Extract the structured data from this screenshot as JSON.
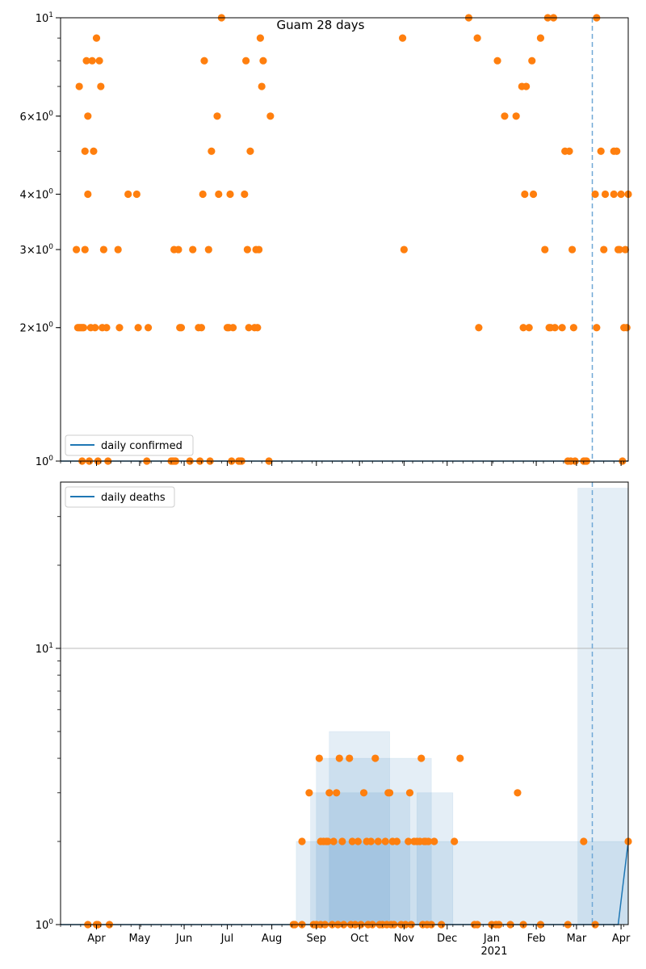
{
  "chart_data": [
    {
      "type": "scatter",
      "title": "Guam 28 days",
      "yscale": "log",
      "ylim": [
        1,
        10
      ],
      "ytick_labels": [
        "10^0",
        "2×10^0",
        "3×10^0",
        "4×10^0",
        "6×10^0",
        "10^1"
      ],
      "x_range": [
        "2020-03-07",
        "2021-04-06"
      ],
      "vline_date": "2021-03-12",
      "legend": {
        "label": "daily confirmed",
        "placement": "lower-left"
      },
      "line_series": {
        "name": "daily confirmed",
        "color": "#1f77b4"
      },
      "points_color": "#ff7f0e",
      "points": [
        [
          "2020-03-18",
          3
        ],
        [
          "2020-03-19",
          2
        ],
        [
          "2020-03-20",
          7
        ],
        [
          "2020-03-20",
          2
        ],
        [
          "2020-03-21",
          2
        ],
        [
          "2020-03-22",
          1
        ],
        [
          "2020-03-22",
          2
        ],
        [
          "2020-03-23",
          2
        ],
        [
          "2020-03-24",
          3
        ],
        [
          "2020-03-24",
          5
        ],
        [
          "2020-03-25",
          8
        ],
        [
          "2020-03-26",
          6
        ],
        [
          "2020-03-26",
          4
        ],
        [
          "2020-03-27",
          1
        ],
        [
          "2020-03-28",
          2
        ],
        [
          "2020-03-29",
          8
        ],
        [
          "2020-03-30",
          5
        ],
        [
          "2020-03-31",
          2
        ],
        [
          "2020-04-01",
          9
        ],
        [
          "2020-04-02",
          1
        ],
        [
          "2020-04-03",
          8
        ],
        [
          "2020-04-04",
          7
        ],
        [
          "2020-04-05",
          2
        ],
        [
          "2020-04-06",
          3
        ],
        [
          "2020-04-08",
          2
        ],
        [
          "2020-04-09",
          1
        ],
        [
          "2020-04-16",
          3
        ],
        [
          "2020-04-17",
          2
        ],
        [
          "2020-04-23",
          4
        ],
        [
          "2020-04-29",
          4
        ],
        [
          "2020-04-30",
          2
        ],
        [
          "2020-05-06",
          1
        ],
        [
          "2020-05-07",
          2
        ],
        [
          "2020-05-23",
          1
        ],
        [
          "2020-05-24",
          1
        ],
        [
          "2020-05-25",
          3
        ],
        [
          "2020-05-25",
          1
        ],
        [
          "2020-05-26",
          1
        ],
        [
          "2020-05-28",
          3
        ],
        [
          "2020-05-29",
          2
        ],
        [
          "2020-05-30",
          2
        ],
        [
          "2020-06-05",
          1
        ],
        [
          "2020-06-07",
          3
        ],
        [
          "2020-06-11",
          2
        ],
        [
          "2020-06-12",
          1
        ],
        [
          "2020-06-13",
          2
        ],
        [
          "2020-06-14",
          4
        ],
        [
          "2020-06-15",
          8
        ],
        [
          "2020-06-18",
          3
        ],
        [
          "2020-06-19",
          1
        ],
        [
          "2020-06-20",
          5
        ],
        [
          "2020-06-24",
          6
        ],
        [
          "2020-06-25",
          4
        ],
        [
          "2020-06-27",
          10
        ],
        [
          "2020-07-01",
          2
        ],
        [
          "2020-07-02",
          2
        ],
        [
          "2020-07-03",
          4
        ],
        [
          "2020-07-04",
          1
        ],
        [
          "2020-07-05",
          2
        ],
        [
          "2020-07-09",
          1
        ],
        [
          "2020-07-10",
          1
        ],
        [
          "2020-07-11",
          1
        ],
        [
          "2020-07-13",
          4
        ],
        [
          "2020-07-14",
          8
        ],
        [
          "2020-07-15",
          3
        ],
        [
          "2020-07-16",
          2
        ],
        [
          "2020-07-17",
          5
        ],
        [
          "2020-07-20",
          2
        ],
        [
          "2020-07-21",
          3
        ],
        [
          "2020-07-22",
          2
        ],
        [
          "2020-07-23",
          3
        ],
        [
          "2020-07-24",
          9
        ],
        [
          "2020-07-25",
          7
        ],
        [
          "2020-07-26",
          8
        ],
        [
          "2020-07-30",
          1
        ],
        [
          "2020-07-31",
          6
        ],
        [
          "2020-10-31",
          9
        ],
        [
          "2020-11-01",
          3
        ],
        [
          "2020-12-16",
          10
        ],
        [
          "2020-12-22",
          9
        ],
        [
          "2020-12-23",
          2
        ],
        [
          "2021-01-05",
          8
        ],
        [
          "2021-01-10",
          6
        ],
        [
          "2021-01-18",
          6
        ],
        [
          "2021-01-22",
          7
        ],
        [
          "2021-01-23",
          2
        ],
        [
          "2021-01-24",
          4
        ],
        [
          "2021-01-25",
          7
        ],
        [
          "2021-01-27",
          2
        ],
        [
          "2021-01-29",
          8
        ],
        [
          "2021-01-30",
          4
        ],
        [
          "2021-02-04",
          9
        ],
        [
          "2021-02-07",
          3
        ],
        [
          "2021-02-09",
          10
        ],
        [
          "2021-02-10",
          2
        ],
        [
          "2021-02-11",
          2
        ],
        [
          "2021-02-13",
          10
        ],
        [
          "2021-02-14",
          2
        ],
        [
          "2021-02-19",
          2
        ],
        [
          "2021-02-21",
          5
        ],
        [
          "2021-02-23",
          1
        ],
        [
          "2021-02-24",
          5
        ],
        [
          "2021-02-25",
          1
        ],
        [
          "2021-02-26",
          3
        ],
        [
          "2021-02-27",
          2
        ],
        [
          "2021-02-28",
          1
        ],
        [
          "2021-03-06",
          1
        ],
        [
          "2021-03-07",
          1
        ],
        [
          "2021-03-08",
          1
        ],
        [
          "2021-03-14",
          4
        ],
        [
          "2021-03-15",
          2
        ],
        [
          "2021-03-15",
          10
        ],
        [
          "2021-03-18",
          5
        ],
        [
          "2021-03-20",
          3
        ],
        [
          "2021-03-21",
          4
        ],
        [
          "2021-03-27",
          4
        ],
        [
          "2021-03-27",
          5
        ],
        [
          "2021-03-29",
          5
        ],
        [
          "2021-03-30",
          3
        ],
        [
          "2021-03-31",
          3
        ],
        [
          "2021-04-01",
          4
        ],
        [
          "2021-04-02",
          1
        ],
        [
          "2021-04-03",
          2
        ],
        [
          "2021-04-04",
          3
        ],
        [
          "2021-04-05",
          2
        ],
        [
          "2021-04-06",
          4
        ]
      ]
    },
    {
      "type": "scatter",
      "title": "",
      "yscale": "log",
      "ylim": [
        1,
        40
      ],
      "ytick_labels": [
        "10^0",
        "10^1"
      ],
      "grid_at": [
        10
      ],
      "x_range": [
        "2020-03-07",
        "2021-04-06"
      ],
      "xtick_labels": [
        "Apr",
        "May",
        "Jun",
        "Jul",
        "Aug",
        "Sep",
        "Oct",
        "Nov",
        "Dec",
        "Jan",
        "Feb",
        "Mar",
        "Apr"
      ],
      "xtick_dates": [
        "2020-04-01",
        "2020-05-01",
        "2020-06-01",
        "2020-07-01",
        "2020-08-01",
        "2020-09-01",
        "2020-10-01",
        "2020-11-01",
        "2020-12-01",
        "2021-01-01",
        "2021-02-01",
        "2021-03-01",
        "2021-04-01"
      ],
      "year_label": "2021",
      "vline_date": "2021-03-12",
      "legend": {
        "label": "daily deaths",
        "placement": "upper-left"
      },
      "line_series": {
        "name": "daily deaths",
        "color": "#1f77b4",
        "points": [
          [
            "2021-03-30",
            1
          ],
          [
            "2021-04-06",
            2
          ]
        ]
      },
      "points_color": "#ff7f0e",
      "bands": [
        {
          "from": "2020-08-18",
          "to": "2021-04-06",
          "low": 1,
          "high": 2
        },
        {
          "from": "2020-09-01",
          "to": "2020-11-20",
          "low": 1,
          "high": 4
        },
        {
          "from": "2020-09-10",
          "to": "2020-10-22",
          "low": 1,
          "high": 5
        },
        {
          "from": "2020-11-10",
          "to": "2020-12-05",
          "low": 1,
          "high": 3
        },
        {
          "from": "2020-08-28",
          "to": "2020-11-05",
          "low": 1,
          "high": 3
        },
        {
          "from": "2021-03-02",
          "to": "2021-04-06",
          "low": 1,
          "high": 38
        }
      ],
      "points": [
        [
          "2020-03-26",
          1
        ],
        [
          "2020-04-01",
          1
        ],
        [
          "2020-04-02",
          1
        ],
        [
          "2020-04-10",
          1
        ],
        [
          "2020-08-16",
          1
        ],
        [
          "2020-08-17",
          1
        ],
        [
          "2020-08-22",
          2
        ],
        [
          "2020-08-22",
          1
        ],
        [
          "2020-08-27",
          3
        ],
        [
          "2020-08-30",
          1
        ],
        [
          "2020-09-01",
          1
        ],
        [
          "2020-09-03",
          4
        ],
        [
          "2020-09-04",
          2
        ],
        [
          "2020-09-04",
          1
        ],
        [
          "2020-09-06",
          2
        ],
        [
          "2020-09-07",
          1
        ],
        [
          "2020-09-08",
          2
        ],
        [
          "2020-09-09",
          2
        ],
        [
          "2020-09-10",
          3
        ],
        [
          "2020-09-12",
          1
        ],
        [
          "2020-09-13",
          2
        ],
        [
          "2020-09-15",
          3
        ],
        [
          "2020-09-16",
          1
        ],
        [
          "2020-09-17",
          4
        ],
        [
          "2020-09-19",
          2
        ],
        [
          "2020-09-20",
          1
        ],
        [
          "2020-09-24",
          4
        ],
        [
          "2020-09-25",
          1
        ],
        [
          "2020-09-26",
          2
        ],
        [
          "2020-09-28",
          1
        ],
        [
          "2020-09-30",
          2
        ],
        [
          "2020-10-02",
          1
        ],
        [
          "2020-10-04",
          3
        ],
        [
          "2020-10-06",
          2
        ],
        [
          "2020-10-07",
          1
        ],
        [
          "2020-10-09",
          2
        ],
        [
          "2020-10-10",
          1
        ],
        [
          "2020-10-12",
          4
        ],
        [
          "2020-10-14",
          2
        ],
        [
          "2020-10-15",
          1
        ],
        [
          "2020-10-17",
          1
        ],
        [
          "2020-10-19",
          2
        ],
        [
          "2020-10-20",
          1
        ],
        [
          "2020-10-21",
          3
        ],
        [
          "2020-10-22",
          3
        ],
        [
          "2020-10-23",
          1
        ],
        [
          "2020-10-24",
          2
        ],
        [
          "2020-10-25",
          1
        ],
        [
          "2020-10-27",
          2
        ],
        [
          "2020-10-30",
          1
        ],
        [
          "2020-11-02",
          1
        ],
        [
          "2020-11-04",
          2
        ],
        [
          "2020-11-05",
          3
        ],
        [
          "2020-11-06",
          1
        ],
        [
          "2020-11-08",
          2
        ],
        [
          "2020-11-10",
          2
        ],
        [
          "2020-11-12",
          2
        ],
        [
          "2020-11-13",
          4
        ],
        [
          "2020-11-14",
          1
        ],
        [
          "2020-11-15",
          2
        ],
        [
          "2020-11-16",
          2
        ],
        [
          "2020-11-17",
          1
        ],
        [
          "2020-11-18",
          2
        ],
        [
          "2020-11-20",
          1
        ],
        [
          "2020-11-22",
          2
        ],
        [
          "2020-11-27",
          1
        ],
        [
          "2020-12-06",
          2
        ],
        [
          "2020-12-10",
          4
        ],
        [
          "2020-12-20",
          1
        ],
        [
          "2020-12-22",
          1
        ],
        [
          "2021-01-01",
          1
        ],
        [
          "2021-01-04",
          1
        ],
        [
          "2021-01-06",
          1
        ],
        [
          "2021-01-14",
          1
        ],
        [
          "2021-01-19",
          3
        ],
        [
          "2021-01-23",
          1
        ],
        [
          "2021-02-04",
          1
        ],
        [
          "2021-02-23",
          1
        ],
        [
          "2021-03-06",
          2
        ],
        [
          "2021-03-14",
          1
        ],
        [
          "2021-04-06",
          2
        ]
      ]
    }
  ]
}
